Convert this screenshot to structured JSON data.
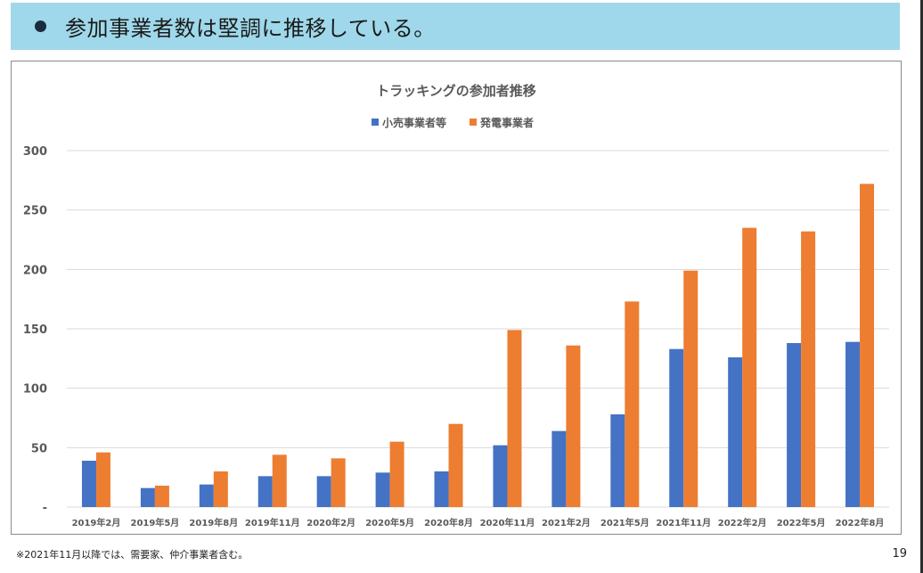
{
  "header": {
    "title": "参加事業者数は堅調に推移している。"
  },
  "footnote": "※2021年11月以降では、需要家、仲介事業者含む。",
  "page_number": "19",
  "colors": {
    "series1": "#4472c4",
    "series2": "#ed7d31",
    "header_bg": "#9fd8ea",
    "grid": "#d9d9d9"
  },
  "chart_data": {
    "type": "bar",
    "title": "トラッキングの参加者推移",
    "xlabel": "",
    "ylabel": "",
    "ylim": [
      0,
      300
    ],
    "yticks": [
      "-",
      "50",
      "100",
      "150",
      "200",
      "250",
      "300"
    ],
    "legend_position": "top-center",
    "grid": true,
    "categories": [
      "2019年2月",
      "2019年5月",
      "2019年8月",
      "2019年11月",
      "2020年2月",
      "2020年5月",
      "2020年8月",
      "2020年11月",
      "2021年2月",
      "2021年5月",
      "2021年11月",
      "2022年2月",
      "2022年5月",
      "2022年8月"
    ],
    "series": [
      {
        "name": "小売事業者等",
        "color": "#4472c4",
        "values": [
          39,
          16,
          19,
          26,
          26,
          29,
          30,
          52,
          64,
          78,
          133,
          126,
          138,
          139
        ]
      },
      {
        "name": "発電事業者",
        "color": "#ed7d31",
        "values": [
          46,
          18,
          30,
          44,
          41,
          55,
          70,
          149,
          136,
          173,
          199,
          235,
          232,
          272
        ]
      }
    ]
  }
}
